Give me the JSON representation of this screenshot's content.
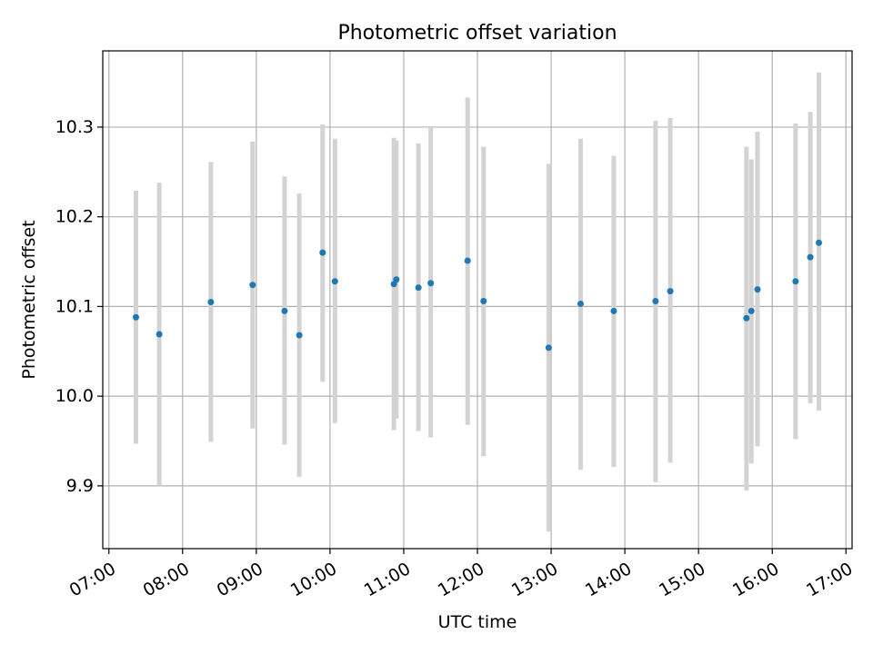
{
  "chart_data": {
    "type": "scatter",
    "title": "Photometric offset variation",
    "xlabel": "UTC time",
    "ylabel": "Photometric offset",
    "grid": true,
    "legend": "none",
    "xlim": [
      "06:55",
      "17:05"
    ],
    "ylim": [
      9.83,
      10.385
    ],
    "x_ticks": [
      "07:00",
      "08:00",
      "09:00",
      "10:00",
      "11:00",
      "12:00",
      "13:00",
      "14:00",
      "15:00",
      "16:00",
      "17:00"
    ],
    "y_ticks": [
      "9.9",
      "10.0",
      "10.1",
      "10.2",
      "10.3"
    ],
    "colors": {
      "point": "#1f77b4",
      "errorbar": "#d3d3d3",
      "grid": "#b0b0b0"
    },
    "points": [
      {
        "t": "07:22",
        "y": 10.088,
        "lo": 9.947,
        "hi": 10.229
      },
      {
        "t": "07:41",
        "y": 10.069,
        "lo": 9.9,
        "hi": 10.238
      },
      {
        "t": "08:23",
        "y": 10.105,
        "lo": 9.949,
        "hi": 10.261
      },
      {
        "t": "08:57",
        "y": 10.124,
        "lo": 9.964,
        "hi": 10.284
      },
      {
        "t": "09:23",
        "y": 10.095,
        "lo": 9.946,
        "hi": 10.245
      },
      {
        "t": "09:35",
        "y": 10.068,
        "lo": 9.91,
        "hi": 10.226
      },
      {
        "t": "09:54",
        "y": 10.16,
        "lo": 10.016,
        "hi": 10.303
      },
      {
        "t": "10:04",
        "y": 10.128,
        "lo": 9.97,
        "hi": 10.287
      },
      {
        "t": "10:52",
        "y": 10.125,
        "lo": 9.962,
        "hi": 10.288
      },
      {
        "t": "10:54",
        "y": 10.13,
        "lo": 9.975,
        "hi": 10.285
      },
      {
        "t": "11:12",
        "y": 10.121,
        "lo": 9.961,
        "hi": 10.282
      },
      {
        "t": "11:22",
        "y": 10.126,
        "lo": 9.954,
        "hi": 10.299
      },
      {
        "t": "11:52",
        "y": 10.151,
        "lo": 9.968,
        "hi": 10.333
      },
      {
        "t": "12:05",
        "y": 10.106,
        "lo": 9.933,
        "hi": 10.278
      },
      {
        "t": "12:58",
        "y": 10.054,
        "lo": 9.849,
        "hi": 10.259
      },
      {
        "t": "13:24",
        "y": 10.103,
        "lo": 9.918,
        "hi": 10.287
      },
      {
        "t": "13:51",
        "y": 10.095,
        "lo": 9.921,
        "hi": 10.268
      },
      {
        "t": "14:25",
        "y": 10.106,
        "lo": 9.904,
        "hi": 10.307
      },
      {
        "t": "14:37",
        "y": 10.117,
        "lo": 9.926,
        "hi": 10.31
      },
      {
        "t": "15:39",
        "y": 10.087,
        "lo": 9.895,
        "hi": 10.278
      },
      {
        "t": "15:43",
        "y": 10.095,
        "lo": 9.925,
        "hi": 10.264
      },
      {
        "t": "15:48",
        "y": 10.119,
        "lo": 9.944,
        "hi": 10.295
      },
      {
        "t": "16:19",
        "y": 10.128,
        "lo": 9.952,
        "hi": 10.304
      },
      {
        "t": "16:31",
        "y": 10.155,
        "lo": 9.992,
        "hi": 10.317
      },
      {
        "t": "16:38",
        "y": 10.171,
        "lo": 9.984,
        "hi": 10.361
      }
    ]
  }
}
